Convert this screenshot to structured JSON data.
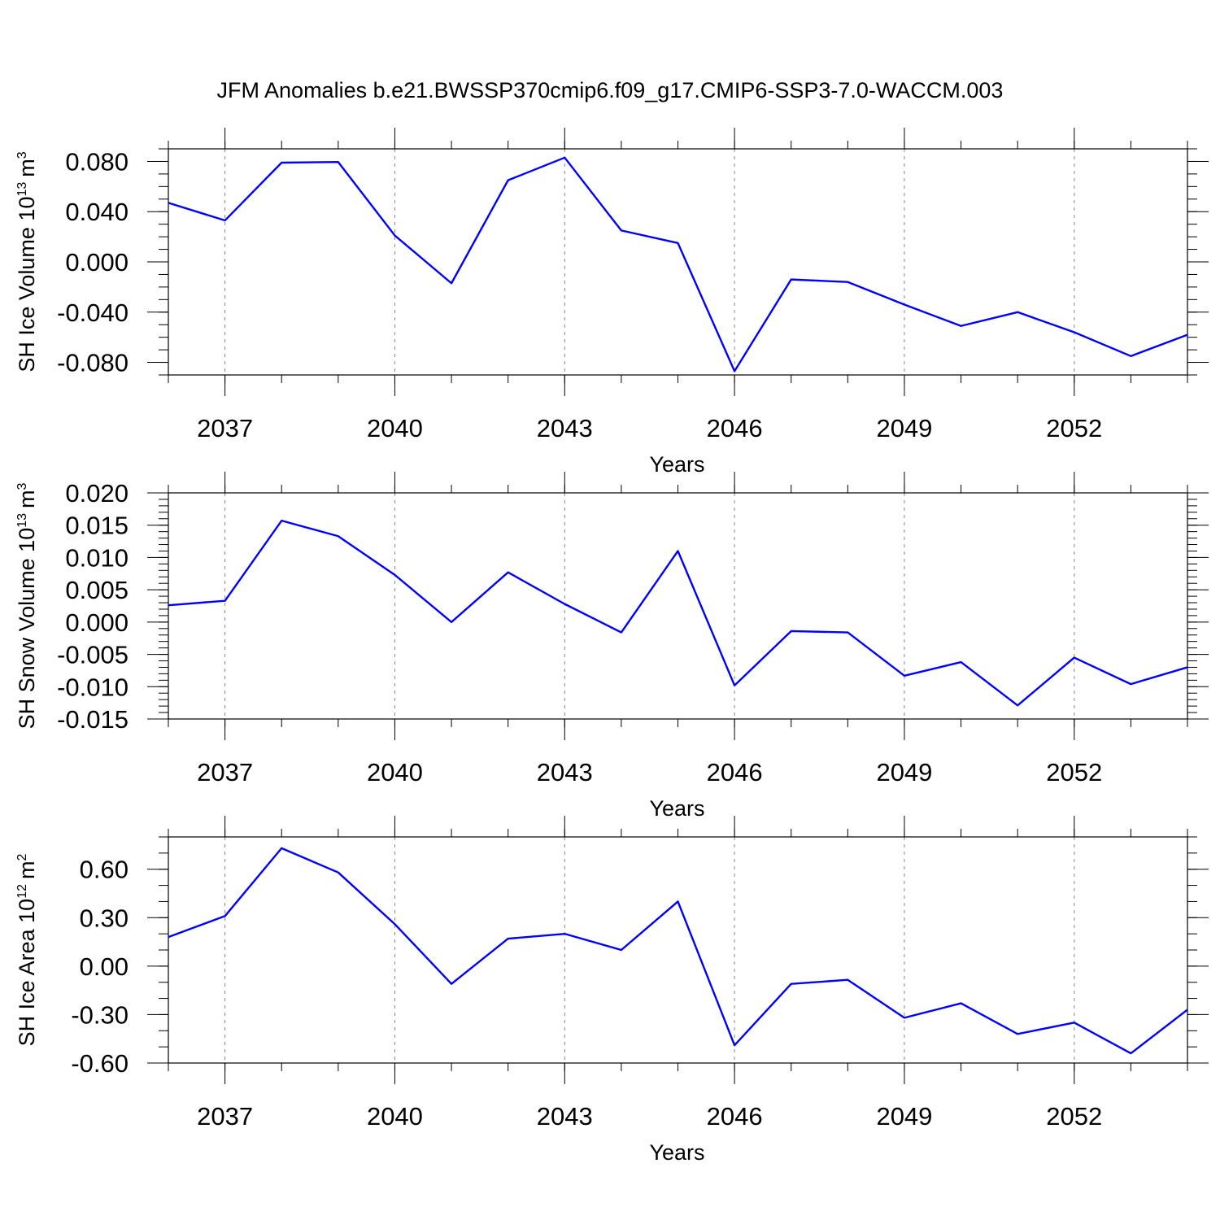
{
  "figure_title": "JFM Anomalies b.e21.BWSSP370cmip6.f09_g17.CMIP6-SSP3-7.0-WACCM.003",
  "colors": {
    "line": "#0000ff",
    "axis": "#000000",
    "grid": "#888888"
  },
  "chart_data": [
    {
      "type": "line",
      "title": "JFM Anomalies b.e21.BWSSP370cmip6.f09_g17.CMIP6-SSP3-7.0-WACCM.003",
      "ylabel_main": "SH Ice Volume 10",
      "ylabel_exp": "13",
      "ylabel_unit": "m",
      "ylabel_unit_exp": "3",
      "xlabel": "Years",
      "xlim": [
        2036,
        2054
      ],
      "ylim": [
        -0.09,
        0.09
      ],
      "x_ticks": [
        2037,
        2040,
        2043,
        2046,
        2049,
        2052
      ],
      "x_tick_labels": [
        "2037",
        "2040",
        "2043",
        "2046",
        "2049",
        "2052"
      ],
      "y_ticks": [
        0.08,
        0.04,
        0.0,
        -0.04,
        -0.08
      ],
      "y_tick_labels": [
        "0.080",
        "0.040",
        "0.000",
        "-0.040",
        "-0.080"
      ],
      "y_minor_step": 0.01,
      "x": [
        2036,
        2037,
        2038,
        2039,
        2040,
        2041,
        2042,
        2043,
        2044,
        2045,
        2046,
        2047,
        2048,
        2049,
        2050,
        2051,
        2052,
        2053,
        2054
      ],
      "values": [
        0.047,
        0.033,
        0.079,
        0.0795,
        0.021,
        -0.017,
        0.065,
        0.083,
        0.025,
        0.015,
        -0.087,
        -0.014,
        -0.016,
        -0.034,
        -0.051,
        -0.04,
        -0.056,
        -0.075,
        -0.058
      ]
    },
    {
      "type": "line",
      "ylabel_main": "SH Snow Volume 10",
      "ylabel_exp": "13",
      "ylabel_unit": "m",
      "ylabel_unit_exp": "3",
      "xlabel": "Years",
      "xlim": [
        2036,
        2054
      ],
      "ylim": [
        -0.015,
        0.02
      ],
      "x_ticks": [
        2037,
        2040,
        2043,
        2046,
        2049,
        2052
      ],
      "x_tick_labels": [
        "2037",
        "2040",
        "2043",
        "2046",
        "2049",
        "2052"
      ],
      "y_ticks": [
        0.02,
        0.015,
        0.01,
        0.005,
        0.0,
        -0.005,
        -0.01,
        -0.015
      ],
      "y_tick_labels": [
        "0.020",
        "0.015",
        "0.010",
        "0.005",
        "0.000",
        "-0.005",
        "-0.010",
        "-0.015"
      ],
      "y_minor_step": 0.001,
      "x": [
        2036,
        2037,
        2038,
        2039,
        2040,
        2041,
        2042,
        2043,
        2044,
        2045,
        2046,
        2047,
        2048,
        2049,
        2050,
        2051,
        2052,
        2053,
        2054
      ],
      "values": [
        0.0026,
        0.0033,
        0.0157,
        0.0133,
        0.0073,
        0.0,
        0.0077,
        0.0028,
        -0.0016,
        0.011,
        -0.0098,
        -0.0014,
        -0.0016,
        -0.0083,
        -0.0062,
        -0.0129,
        -0.0055,
        -0.0096,
        -0.007
      ]
    },
    {
      "type": "line",
      "ylabel_main": "SH Ice Area 10",
      "ylabel_exp": "12",
      "ylabel_unit": "m",
      "ylabel_unit_exp": "2",
      "xlabel": "Years",
      "xlim": [
        2036,
        2054
      ],
      "ylim": [
        -0.6,
        0.8
      ],
      "x_ticks": [
        2037,
        2040,
        2043,
        2046,
        2049,
        2052
      ],
      "x_tick_labels": [
        "2037",
        "2040",
        "2043",
        "2046",
        "2049",
        "2052"
      ],
      "y_ticks": [
        0.6,
        0.3,
        0.0,
        -0.3,
        -0.6
      ],
      "y_tick_labels": [
        "0.60",
        "0.30",
        "0.00",
        "-0.30",
        "-0.60"
      ],
      "y_minor_step": 0.1,
      "x": [
        2036,
        2037,
        2038,
        2039,
        2040,
        2041,
        2042,
        2043,
        2044,
        2045,
        2046,
        2047,
        2048,
        2049,
        2050,
        2051,
        2052,
        2053,
        2054
      ],
      "values": [
        0.18,
        0.31,
        0.73,
        0.58,
        0.26,
        -0.11,
        0.17,
        0.2,
        0.1,
        0.4,
        -0.49,
        -0.11,
        -0.085,
        -0.32,
        -0.23,
        -0.42,
        -0.35,
        -0.54,
        -0.27
      ]
    }
  ]
}
